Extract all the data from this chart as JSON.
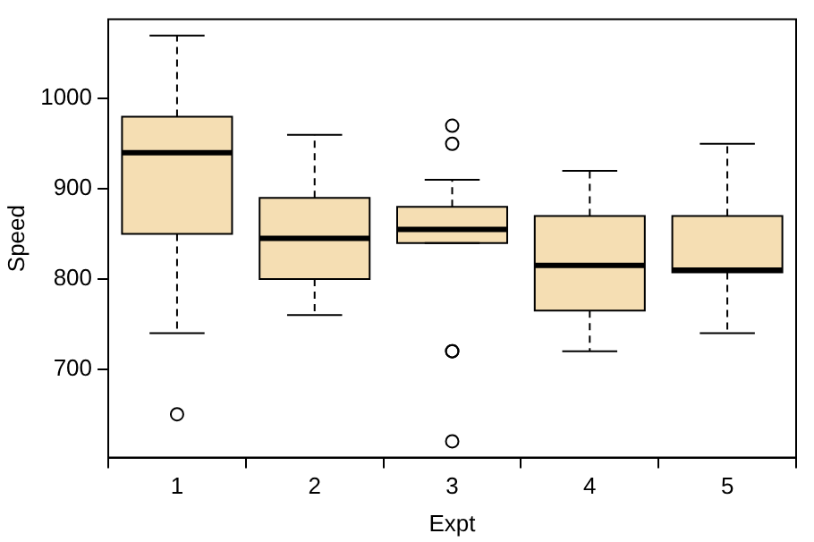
{
  "chart_data": {
    "type": "box",
    "xlabel": "Expt",
    "ylabel": "Speed",
    "categories": [
      "1",
      "2",
      "3",
      "4",
      "5"
    ],
    "color": "#f5deb3",
    "boxes": [
      {
        "low": 740,
        "q1": 850,
        "median": 940,
        "q3": 980,
        "high": 1070,
        "outliers": [
          650
        ]
      },
      {
        "low": 760,
        "q1": 800,
        "median": 845,
        "q3": 890,
        "high": 960
      },
      {
        "low": 840,
        "q1": 840,
        "median": 855,
        "q3": 880,
        "high": 910,
        "outliers": [
          620,
          720,
          720,
          950,
          970
        ]
      },
      {
        "low": 720,
        "q1": 765,
        "median": 815,
        "q3": 870,
        "high": 920
      },
      {
        "low": 740,
        "q1": 807.5,
        "median": 810,
        "q3": 870,
        "high": 950
      }
    ],
    "ylim": [
      602,
      1088
    ],
    "yticks": [
      700,
      800,
      900,
      1000
    ],
    "grid": false,
    "legend": false
  }
}
